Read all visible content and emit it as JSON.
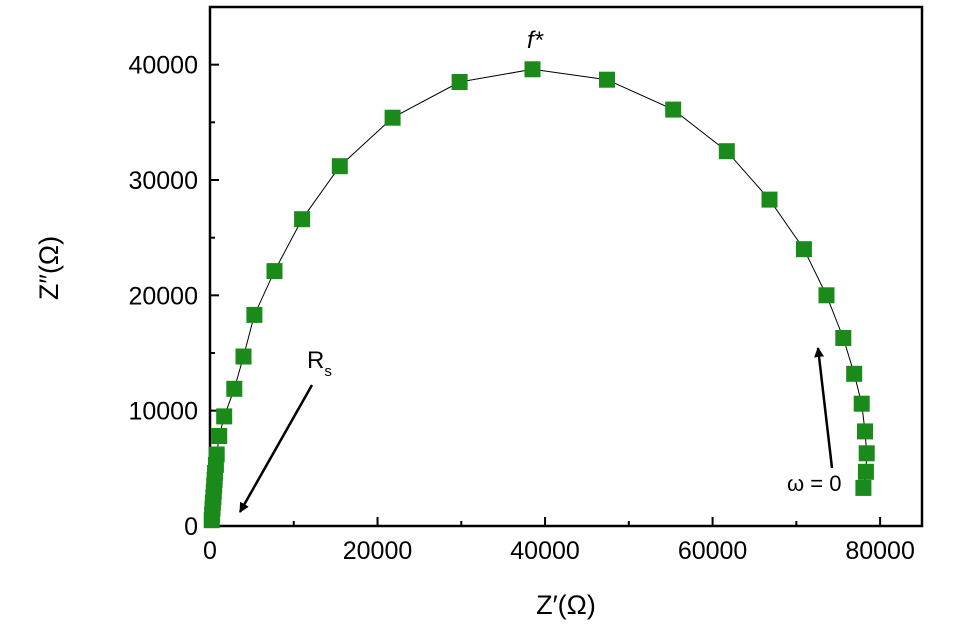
{
  "chart_data": {
    "type": "scatter",
    "xlabel": "Z′(Ω)",
    "ylabel": "Z″(Ω)",
    "xlim": [
      0,
      85000
    ],
    "ylim": [
      0,
      45000
    ],
    "xticks": [
      0,
      20000,
      40000,
      60000,
      80000
    ],
    "xtick_labels": [
      "0",
      "20000",
      "40000",
      "60000",
      "80000"
    ],
    "yticks": [
      0,
      10000,
      20000,
      30000,
      40000
    ],
    "ytick_labels": [
      "0",
      "10000",
      "20000",
      "30000",
      "40000"
    ],
    "grid": false,
    "marker_color": "#1a8a1a",
    "line_color": "#000000",
    "series": [
      {
        "values": [
          {
            "x": 200,
            "y": 500
          },
          {
            "x": 250,
            "y": 1000
          },
          {
            "x": 300,
            "y": 1500
          },
          {
            "x": 350,
            "y": 2000
          },
          {
            "x": 400,
            "y": 2500
          },
          {
            "x": 450,
            "y": 3000
          },
          {
            "x": 500,
            "y": 3500
          },
          {
            "x": 550,
            "y": 4000
          },
          {
            "x": 600,
            "y": 4600
          },
          {
            "x": 700,
            "y": 5300
          },
          {
            "x": 800,
            "y": 6200
          },
          {
            "x": 1100,
            "y": 7800
          },
          {
            "x": 1700,
            "y": 9500
          },
          {
            "x": 2900,
            "y": 11900
          },
          {
            "x": 4000,
            "y": 14700
          },
          {
            "x": 5300,
            "y": 18300
          },
          {
            "x": 7700,
            "y": 22100
          },
          {
            "x": 11000,
            "y": 26600
          },
          {
            "x": 15500,
            "y": 31200
          },
          {
            "x": 21800,
            "y": 35400
          },
          {
            "x": 29800,
            "y": 38500
          },
          {
            "x": 38500,
            "y": 39600
          },
          {
            "x": 47400,
            "y": 38700
          },
          {
            "x": 55300,
            "y": 36100
          },
          {
            "x": 61700,
            "y": 32500
          },
          {
            "x": 66800,
            "y": 28300
          },
          {
            "x": 70900,
            "y": 24000
          },
          {
            "x": 73600,
            "y": 20000
          },
          {
            "x": 75600,
            "y": 16300
          },
          {
            "x": 76900,
            "y": 13200
          },
          {
            "x": 77800,
            "y": 10600
          },
          {
            "x": 78200,
            "y": 8200
          },
          {
            "x": 78400,
            "y": 6300
          },
          {
            "x": 78300,
            "y": 4700
          },
          {
            "x": 78000,
            "y": 3300
          }
        ]
      }
    ],
    "annotations": [
      {
        "id": "fstar",
        "main": "f*",
        "sub": ""
      },
      {
        "id": "rs",
        "main": "R",
        "sub": "s"
      },
      {
        "id": "omega",
        "main": "ω = 0",
        "sub": ""
      }
    ]
  }
}
